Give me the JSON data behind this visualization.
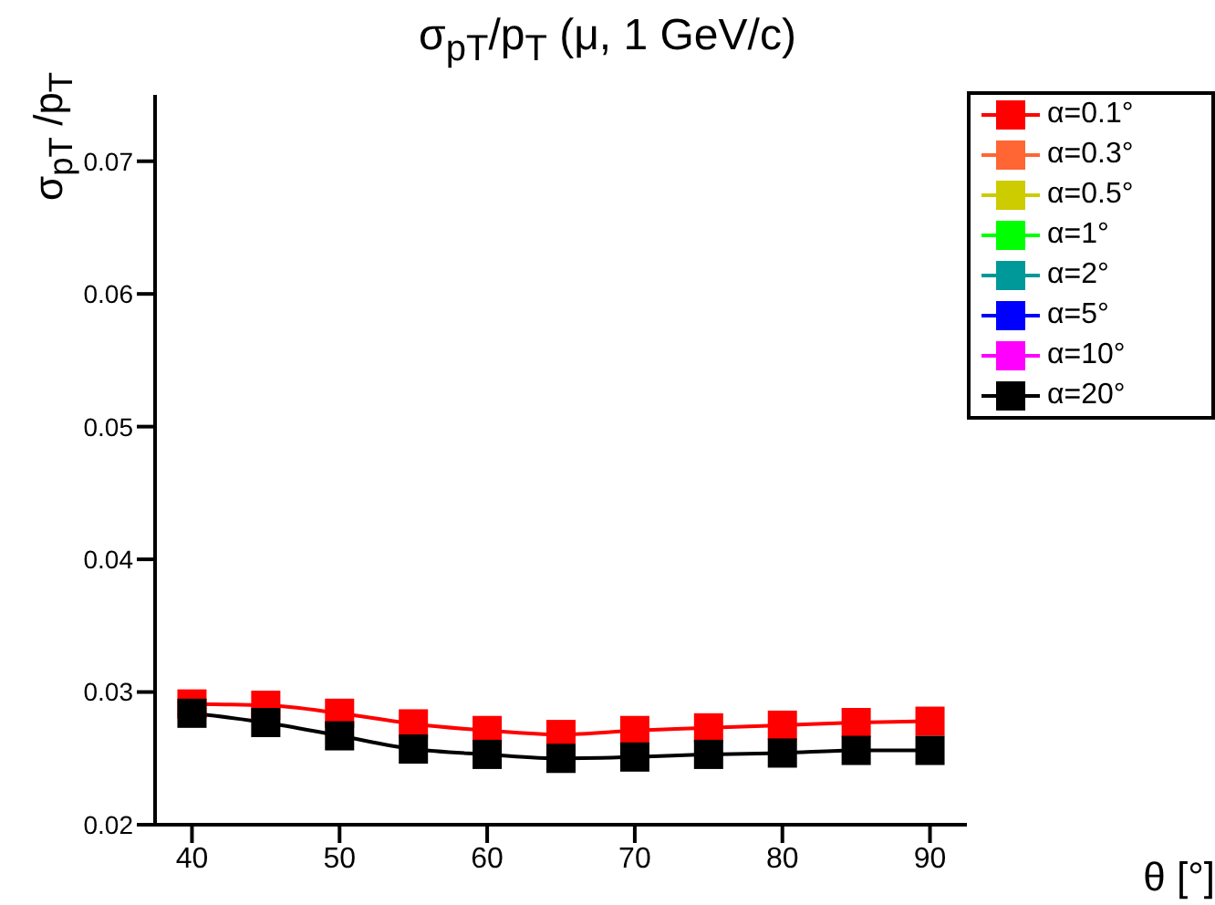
{
  "chart_data": {
    "type": "line",
    "title": "σ$_{pT}$/p$_{T}$ (μ, 1 GeV/c)",
    "xlabel": "θ [°]",
    "ylabel": "σ$_{pT}$ /p$_{T}$",
    "x": [
      40,
      45,
      50,
      55,
      60,
      65,
      70,
      75,
      80,
      85,
      90
    ],
    "series": [
      {
        "name": "α=0.1°",
        "color": "#ff0000",
        "values": [
          0.0291,
          0.029,
          0.0284,
          0.0276,
          0.0271,
          0.0268,
          0.0271,
          0.0273,
          0.0275,
          0.0277,
          0.0278
        ]
      },
      {
        "name": "α=0.3°",
        "color": "#ff6633",
        "values": [
          null,
          null,
          null,
          null,
          null,
          null,
          null,
          null,
          null,
          null,
          null
        ]
      },
      {
        "name": "α=0.5°",
        "color": "#cccc00",
        "values": [
          null,
          null,
          null,
          null,
          null,
          null,
          null,
          null,
          null,
          null,
          null
        ]
      },
      {
        "name": "α=1°",
        "color": "#00ff00",
        "values": [
          null,
          null,
          null,
          null,
          null,
          null,
          null,
          null,
          null,
          null,
          null
        ]
      },
      {
        "name": "α=2°",
        "color": "#009999",
        "values": [
          null,
          null,
          null,
          null,
          null,
          null,
          null,
          null,
          null,
          null,
          null
        ]
      },
      {
        "name": "α=5°",
        "color": "#0000ff",
        "values": [
          null,
          null,
          null,
          null,
          null,
          null,
          null,
          null,
          null,
          null,
          null
        ]
      },
      {
        "name": "α=10°",
        "color": "#ff00ff",
        "values": [
          null,
          null,
          null,
          null,
          null,
          null,
          null,
          null,
          null,
          null,
          null
        ]
      },
      {
        "name": "α=20°",
        "color": "#000000",
        "values": [
          0.0284,
          0.0277,
          0.0267,
          0.0257,
          0.0253,
          0.025,
          0.0251,
          0.0253,
          0.0254,
          0.0256,
          0.0256
        ]
      }
    ],
    "xlim": [
      37.5,
      92.5
    ],
    "xticks": [
      40,
      50,
      60,
      70,
      80,
      90
    ],
    "ylim": [
      0.02,
      0.075
    ],
    "yticks": [
      0.02,
      0.03,
      0.04,
      0.05,
      0.06,
      0.07
    ],
    "grid": false,
    "legend": "top right",
    "marker": "square",
    "line_style": "solid"
  }
}
